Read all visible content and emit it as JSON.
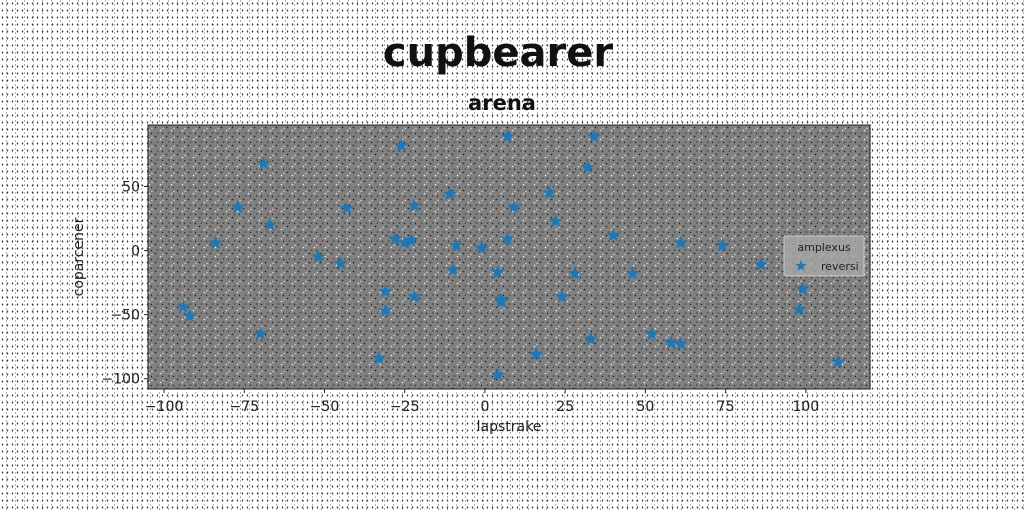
{
  "chart_data": {
    "type": "scatter",
    "title": "cupbearer",
    "subtitle": "arena",
    "xlabel": "lapstrake",
    "ylabel": "coparcener",
    "xlim": [
      -105,
      120
    ],
    "ylim": [
      -108,
      98
    ],
    "xticks": [
      -100,
      -75,
      -50,
      -25,
      0,
      25,
      50,
      75,
      100
    ],
    "yticks": [
      -100,
      -50,
      0,
      50
    ],
    "xtick_labels": [
      "−100",
      "−75",
      "−50",
      "−25",
      "0",
      "25",
      "50",
      "75",
      "100"
    ],
    "ytick_labels": [
      "−100",
      "−50",
      "0",
      "50"
    ],
    "grid": false,
    "background": "#808080",
    "marker": "star",
    "legend": {
      "title": "amplexus",
      "placement": "center-right"
    },
    "series": [
      {
        "name": "reversi",
        "color": "#1f77b4",
        "points": [
          [
            -94,
            -44
          ],
          [
            -92,
            -51
          ],
          [
            -84,
            6
          ],
          [
            -77,
            34
          ],
          [
            -70,
            -65
          ],
          [
            -69,
            68
          ],
          [
            -67,
            20
          ],
          [
            -52,
            -5
          ],
          [
            -45,
            -10
          ],
          [
            -43,
            33
          ],
          [
            -33,
            -84
          ],
          [
            -31,
            -32
          ],
          [
            -31,
            -47
          ],
          [
            -28,
            9
          ],
          [
            -26,
            82
          ],
          [
            -25,
            6
          ],
          [
            -23,
            8
          ],
          [
            -22,
            35
          ],
          [
            -22,
            -36
          ],
          [
            -11,
            44
          ],
          [
            -10,
            -15
          ],
          [
            -9,
            4
          ],
          [
            -1,
            2
          ],
          [
            4,
            -97
          ],
          [
            4,
            -17
          ],
          [
            5,
            -40
          ],
          [
            5,
            -38
          ],
          [
            7,
            89
          ],
          [
            7,
            9
          ],
          [
            9,
            34
          ],
          [
            16,
            -81
          ],
          [
            20,
            45
          ],
          [
            22,
            23
          ],
          [
            24,
            -36
          ],
          [
            28,
            -18
          ],
          [
            32,
            65
          ],
          [
            33,
            -69
          ],
          [
            34,
            89
          ],
          [
            40,
            12
          ],
          [
            46,
            -18
          ],
          [
            52,
            -65
          ],
          [
            58,
            -72
          ],
          [
            61,
            -73
          ],
          [
            61,
            6
          ],
          [
            74,
            4
          ],
          [
            86,
            -11
          ],
          [
            98,
            -46
          ],
          [
            99,
            -30
          ],
          [
            110,
            -87
          ]
        ]
      }
    ]
  }
}
